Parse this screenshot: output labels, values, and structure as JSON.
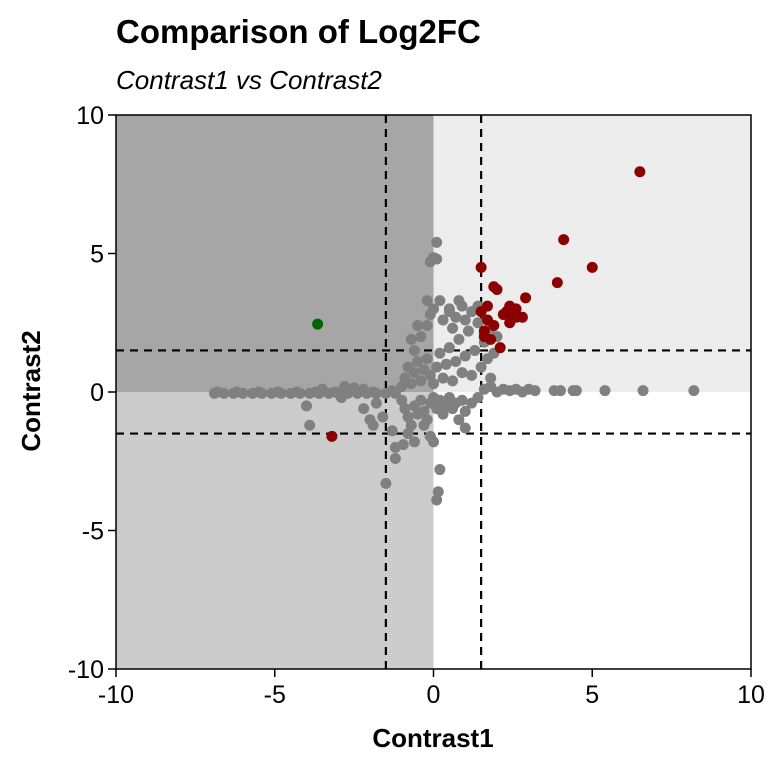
{
  "chart_data": {
    "type": "scatter",
    "title": "Comparison of Log2FC",
    "subtitle": "Contrast1 vs Contrast2",
    "xlabel": "Contrast1",
    "ylabel": "Contrast2",
    "xlim": [
      -10,
      10
    ],
    "ylim": [
      -10,
      10
    ],
    "x_ticks": [
      -10,
      -5,
      0,
      5,
      10
    ],
    "y_ticks": [
      -10,
      -5,
      0,
      5,
      10
    ],
    "x_tick_labels": [
      "-10",
      "-5",
      "0",
      "5",
      "10"
    ],
    "y_tick_labels": [
      "-10",
      "-5",
      "0",
      "5",
      "10"
    ],
    "grid": false,
    "legend": "none",
    "thresholds": {
      "x": [
        -1.5,
        1.5
      ],
      "y": [
        -1.5,
        1.5
      ]
    },
    "quadrant_fills": {
      "upper_left": "#a6a6a6",
      "upper_right": "#ececec",
      "lower_left": "#cccccc",
      "lower_right": "#ffffff"
    },
    "colors": {
      "not_significant": "#808080",
      "up_both": "#8b0000",
      "opposite": "#006400"
    },
    "series": [
      {
        "color_key": "not_significant",
        "points": [
          [
            -6.9,
            -0.05
          ],
          [
            -6.6,
            -0.05
          ],
          [
            -6.3,
            -0.05
          ],
          [
            -6.0,
            -0.05
          ],
          [
            -5.7,
            -0.05
          ],
          [
            -5.4,
            -0.05
          ],
          [
            -5.1,
            -0.05
          ],
          [
            -4.8,
            -0.05
          ],
          [
            -4.5,
            -0.05
          ],
          [
            -4.2,
            -0.05
          ],
          [
            -3.9,
            -0.05
          ],
          [
            -3.6,
            -0.05
          ],
          [
            -3.3,
            -0.05
          ],
          [
            -3.0,
            -0.05
          ],
          [
            -2.7,
            -0.05
          ],
          [
            -2.4,
            -0.05
          ],
          [
            -2.1,
            -0.05
          ],
          [
            -1.8,
            -0.05
          ],
          [
            -1.5,
            -0.05
          ],
          [
            -1.2,
            -0.05
          ],
          [
            -6.8,
            0.0
          ],
          [
            -6.2,
            0.0
          ],
          [
            -5.5,
            0.0
          ],
          [
            -4.9,
            0.0
          ],
          [
            -4.3,
            0.0
          ],
          [
            -3.7,
            0.0
          ],
          [
            -3.1,
            0.0
          ],
          [
            -2.5,
            0.05
          ],
          [
            -1.9,
            0.0
          ],
          [
            -1.3,
            0.05
          ],
          [
            -2.8,
            0.2
          ],
          [
            -2.5,
            0.15
          ],
          [
            -2.2,
            0.1
          ],
          [
            -3.5,
            0.1
          ],
          [
            -2.9,
            -0.2
          ],
          [
            -4.0,
            -0.5
          ],
          [
            -3.9,
            -1.2
          ],
          [
            -2.2,
            -0.6
          ],
          [
            -1.8,
            -0.4
          ],
          [
            -2.0,
            -1.0
          ],
          [
            -1.6,
            -0.9
          ],
          [
            -1.3,
            -1.4
          ],
          [
            -1.9,
            -1.2
          ],
          [
            -1.5,
            -3.3
          ],
          [
            -1.2,
            -2.0
          ],
          [
            -1.2,
            -2.4
          ],
          [
            -0.95,
            -1.9
          ],
          [
            -0.8,
            -1.5
          ],
          [
            -0.6,
            -1.8
          ],
          [
            -0.3,
            -1.2
          ],
          [
            -0.1,
            -1.6
          ],
          [
            0.0,
            -1.8
          ],
          [
            0.1,
            -3.9
          ],
          [
            0.15,
            -3.6
          ],
          [
            0.2,
            -2.8
          ],
          [
            -1.0,
            -0.3
          ],
          [
            -0.9,
            -0.6
          ],
          [
            -0.8,
            -0.9
          ],
          [
            -0.7,
            -1.2
          ],
          [
            -0.6,
            -0.5
          ],
          [
            -0.5,
            -0.8
          ],
          [
            -0.4,
            -0.3
          ],
          [
            -0.3,
            -0.7
          ],
          [
            -0.2,
            -1.0
          ],
          [
            -0.1,
            -0.4
          ],
          [
            0.0,
            -0.2
          ],
          [
            0.1,
            -0.6
          ],
          [
            0.2,
            -0.3
          ],
          [
            0.3,
            -0.8
          ],
          [
            0.4,
            -0.5
          ],
          [
            0.5,
            -0.2
          ],
          [
            0.6,
            -0.6
          ],
          [
            0.7,
            -0.4
          ],
          [
            0.8,
            -1.0
          ],
          [
            0.9,
            -0.3
          ],
          [
            1.0,
            -0.7
          ],
          [
            1.2,
            -0.4
          ],
          [
            1.4,
            -0.2
          ],
          [
            1.0,
            -1.3
          ],
          [
            -1.0,
            0.2
          ],
          [
            -0.9,
            0.5
          ],
          [
            -0.8,
            0.9
          ],
          [
            -0.7,
            0.3
          ],
          [
            -0.6,
            0.7
          ],
          [
            -0.5,
            1.1
          ],
          [
            -0.4,
            0.4
          ],
          [
            -0.3,
            0.8
          ],
          [
            -0.2,
            1.2
          ],
          [
            -0.1,
            0.6
          ],
          [
            0.0,
            0.3
          ],
          [
            0.1,
            0.9
          ],
          [
            0.2,
            1.4
          ],
          [
            0.3,
            0.5
          ],
          [
            0.4,
            1.0
          ],
          [
            0.5,
            1.6
          ],
          [
            0.6,
            0.4
          ],
          [
            0.7,
            1.1
          ],
          [
            0.8,
            1.9
          ],
          [
            0.9,
            0.7
          ],
          [
            1.0,
            1.3
          ],
          [
            1.1,
            2.2
          ],
          [
            1.2,
            0.6
          ],
          [
            1.3,
            1.5
          ],
          [
            1.4,
            2.5
          ],
          [
            1.5,
            0.9
          ],
          [
            1.6,
            1.8
          ],
          [
            1.7,
            1.2
          ],
          [
            1.8,
            0.5
          ],
          [
            1.9,
            1.4
          ],
          [
            -0.6,
            1.5
          ],
          [
            -0.7,
            1.9
          ],
          [
            -0.4,
            2.0
          ],
          [
            -0.2,
            2.4
          ],
          [
            -0.1,
            2.8
          ],
          [
            0.0,
            3.0
          ],
          [
            0.2,
            3.3
          ],
          [
            0.3,
            2.6
          ],
          [
            0.5,
            2.9
          ],
          [
            0.6,
            2.3
          ],
          [
            0.7,
            2.7
          ],
          [
            0.9,
            3.1
          ],
          [
            1.0,
            2.6
          ],
          [
            1.2,
            2.9
          ],
          [
            1.4,
            3.1
          ],
          [
            0.5,
            3.0
          ],
          [
            0.8,
            3.3
          ],
          [
            -0.1,
            4.7
          ],
          [
            0.0,
            4.85
          ],
          [
            0.1,
            5.4
          ],
          [
            -0.2,
            3.3
          ],
          [
            -0.5,
            2.4
          ],
          [
            0.1,
            4.8
          ],
          [
            1.6,
            0.1
          ],
          [
            1.8,
            0.2
          ],
          [
            2.0,
            0.0
          ],
          [
            2.2,
            0.1
          ],
          [
            2.4,
            0.05
          ],
          [
            2.6,
            0.1
          ],
          [
            2.8,
            0.0
          ],
          [
            3.0,
            0.1
          ],
          [
            3.2,
            0.05
          ],
          [
            3.8,
            0.05
          ],
          [
            4.0,
            0.05
          ],
          [
            4.4,
            0.05
          ],
          [
            4.5,
            0.05
          ],
          [
            5.4,
            0.05
          ],
          [
            6.6,
            0.05
          ],
          [
            8.2,
            0.05
          ],
          [
            1.6,
            2.1
          ],
          [
            1.8,
            2.3
          ],
          [
            2.0,
            2.0
          ],
          [
            1.7,
            2.6
          ]
        ]
      },
      {
        "color_key": "up_both",
        "points": [
          [
            6.5,
            7.95
          ],
          [
            4.1,
            5.5
          ],
          [
            5.0,
            4.5
          ],
          [
            3.9,
            3.95
          ],
          [
            1.5,
            4.5
          ],
          [
            1.9,
            3.8
          ],
          [
            2.0,
            3.7
          ],
          [
            2.9,
            3.4
          ],
          [
            1.7,
            3.1
          ],
          [
            2.4,
            3.1
          ],
          [
            2.6,
            3.0
          ],
          [
            2.8,
            2.7
          ],
          [
            2.2,
            2.8
          ],
          [
            2.4,
            2.5
          ],
          [
            2.6,
            2.7
          ],
          [
            1.7,
            2.6
          ],
          [
            1.6,
            2.2
          ],
          [
            1.5,
            2.9
          ],
          [
            1.8,
            1.9
          ],
          [
            2.1,
            1.6
          ],
          [
            2.3,
            2.9
          ],
          [
            2.5,
            2.8
          ],
          [
            1.6,
            2.0
          ],
          [
            1.9,
            2.4
          ],
          [
            -3.2,
            -1.6
          ]
        ]
      },
      {
        "color_key": "opposite",
        "points": [
          [
            -3.65,
            2.45
          ]
        ]
      }
    ]
  }
}
